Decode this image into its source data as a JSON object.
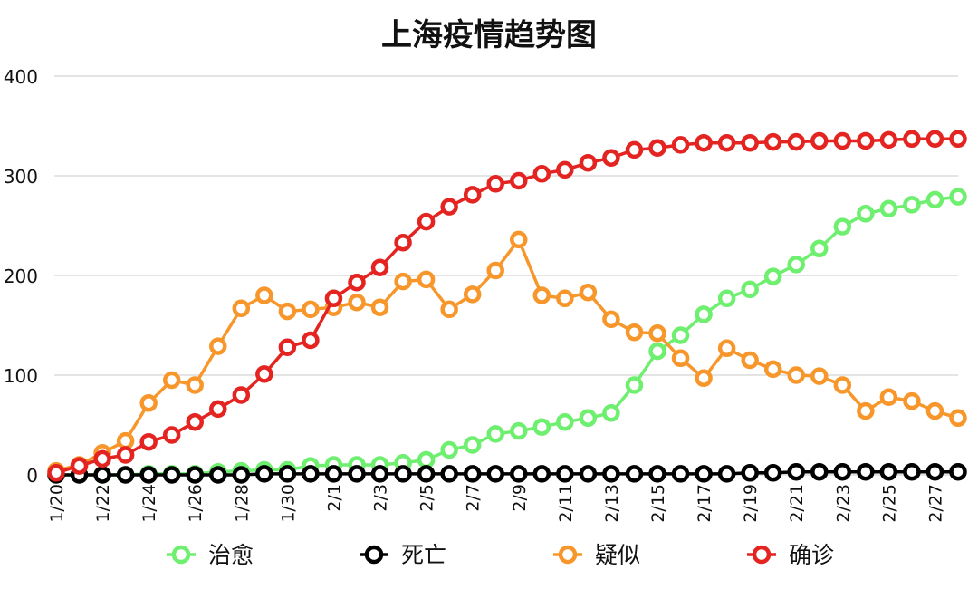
{
  "chart_data": {
    "type": "line",
    "title": "上海疫情趋势图",
    "xlabel": "",
    "ylabel": "",
    "ylim": [
      0,
      400
    ],
    "yticks": [
      0,
      100,
      200,
      300,
      400
    ],
    "grid": true,
    "legend_position": "bottom",
    "x": [
      "1/20",
      "1/21",
      "1/22",
      "1/23",
      "1/24",
      "1/25",
      "1/26",
      "1/27",
      "1/28",
      "1/29",
      "1/30",
      "1/31",
      "2/1",
      "2/2",
      "2/3",
      "2/4",
      "2/5",
      "2/6",
      "2/7",
      "2/8",
      "2/9",
      "2/10",
      "2/11",
      "2/12",
      "2/13",
      "2/14",
      "2/15",
      "2/16",
      "2/17",
      "2/18",
      "2/19",
      "2/20",
      "2/21",
      "2/22",
      "2/23",
      "2/24",
      "2/25",
      "2/26",
      "2/27",
      "2/28"
    ],
    "xtick_labels": [
      "1/20",
      "1/22",
      "1/24",
      "1/26",
      "1/28",
      "1/30",
      "2/1",
      "2/3",
      "2/5",
      "2/7",
      "2/9",
      "2/11",
      "2/13",
      "2/15",
      "2/17",
      "2/19",
      "2/21",
      "2/23",
      "2/25",
      "2/27"
    ],
    "series": [
      {
        "name": "治愈",
        "color": "#6FEF6F",
        "values": [
          0,
          0,
          0,
          0,
          1,
          1,
          1,
          3,
          4,
          5,
          5,
          9,
          10,
          10,
          10,
          12,
          15,
          25,
          30,
          41,
          44,
          48,
          53,
          57,
          62,
          90,
          124,
          140,
          161,
          177,
          186,
          199,
          211,
          227,
          249,
          262,
          267,
          271,
          276,
          279
        ]
      },
      {
        "name": "死亡",
        "color": "#000000",
        "values": [
          0,
          0,
          0,
          0,
          0,
          0,
          0,
          0,
          0,
          1,
          1,
          1,
          1,
          1,
          1,
          1,
          1,
          1,
          1,
          1,
          1,
          1,
          1,
          1,
          1,
          1,
          1,
          1,
          1,
          1,
          2,
          2,
          3,
          3,
          3,
          3,
          3,
          3,
          3,
          3
        ]
      },
      {
        "name": "疑似",
        "color": "#F7972B",
        "values": [
          4,
          10,
          22,
          34,
          72,
          95,
          90,
          129,
          167,
          180,
          164,
          166,
          168,
          173,
          168,
          194,
          196,
          166,
          181,
          205,
          236,
          180,
          177,
          183,
          156,
          143,
          142,
          117,
          97,
          127,
          115,
          106,
          100,
          99,
          90,
          64,
          78,
          74,
          64,
          57
        ]
      },
      {
        "name": "确诊",
        "color": "#E32421",
        "values": [
          2,
          9,
          16,
          20,
          33,
          40,
          53,
          66,
          80,
          101,
          128,
          135,
          177,
          193,
          208,
          233,
          254,
          269,
          281,
          292,
          295,
          302,
          306,
          313,
          318,
          326,
          328,
          331,
          333,
          333,
          333,
          334,
          334,
          335,
          335,
          335,
          336,
          337,
          337,
          337
        ]
      }
    ]
  }
}
